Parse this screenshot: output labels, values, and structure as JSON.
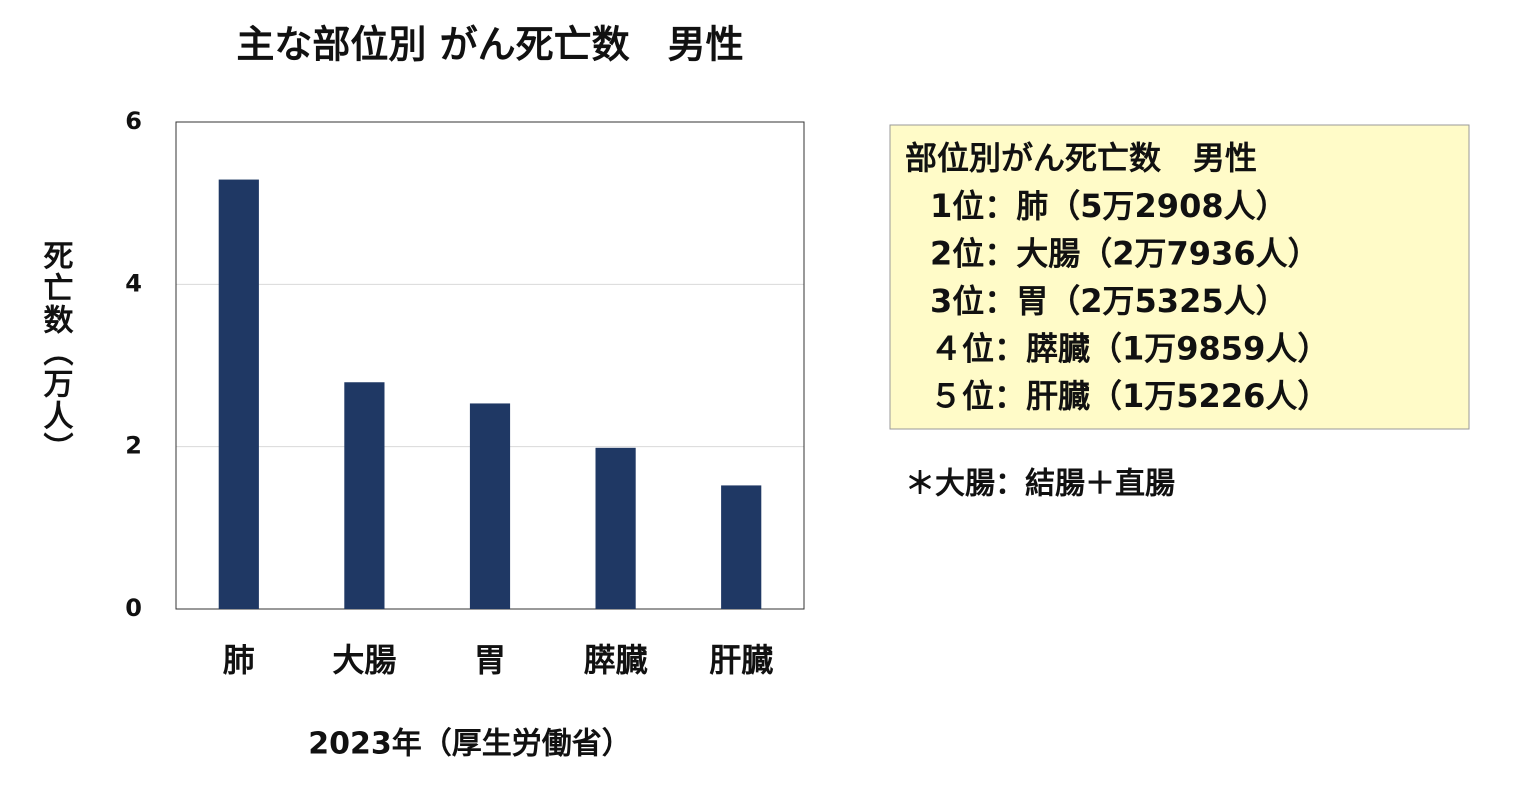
{
  "chart_data": {
    "type": "bar",
    "title": "主な部位別 がん死亡数　男性",
    "y_label": "死亡数（万人）",
    "x_label": "2023年（厚生労働省）",
    "categories": [
      "肺",
      "大腸",
      "胃",
      "膵臓",
      "肝臓"
    ],
    "values": [
      5.2908,
      2.7936,
      2.5325,
      1.9859,
      1.5226
    ],
    "color": "#1f3864",
    "ylim": [
      0,
      6
    ],
    "yticks": [
      0,
      2,
      4,
      6
    ],
    "grid": true
  },
  "panel": {
    "title": "部位別がん死亡数　男性",
    "lines": [
      "1位：肺（5万2908人）",
      "2位：大腸（2万7936人）",
      "3位：胃（2万5325人）",
      "４位：膵臓（1万9859人）",
      "５位：肝臓（1万5226人）"
    ]
  },
  "footnote": "＊大腸：結腸＋直腸"
}
